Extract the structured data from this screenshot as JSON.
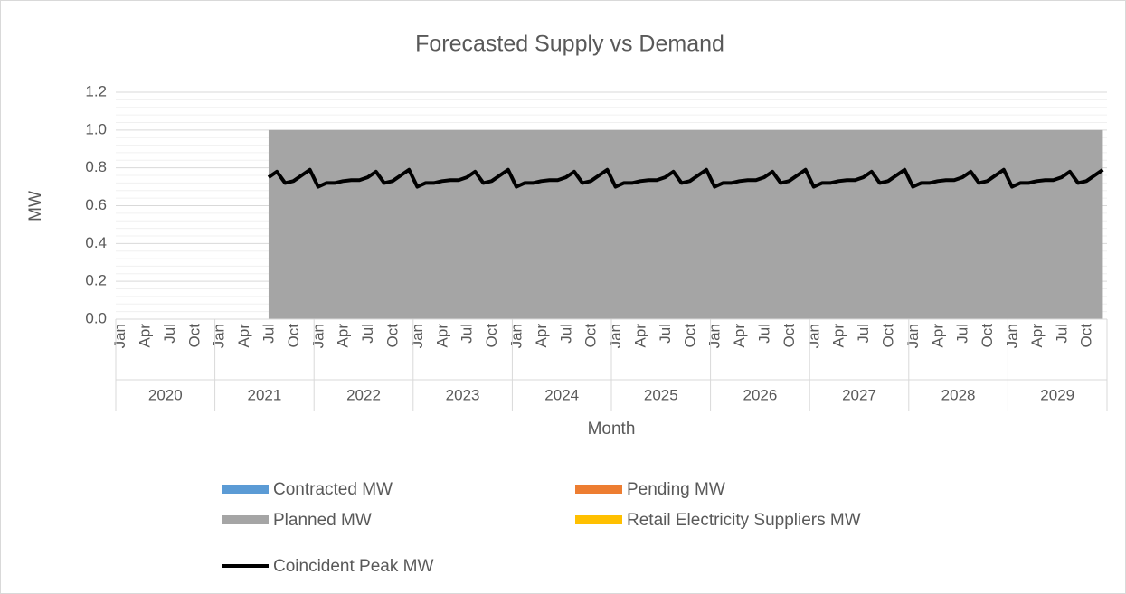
{
  "chart_data": {
    "type": "area",
    "title": "Forecasted Supply vs Demand",
    "x_label": "Month",
    "y_label": "MW",
    "categories": [
      "Jan",
      null,
      null,
      "Apr",
      null,
      null,
      "Jul",
      null,
      null,
      "Oct",
      null,
      null,
      "Jan",
      null,
      null,
      "Apr",
      null,
      null,
      "Jul",
      null,
      null,
      "Oct",
      null,
      null,
      "Jan",
      null,
      null,
      "Apr",
      null,
      null,
      "Jul",
      null,
      null,
      "Oct",
      null,
      null,
      "Jan",
      null,
      null,
      "Apr",
      null,
      null,
      "Jul",
      null,
      null,
      "Oct",
      null,
      null,
      "Jan",
      null,
      null,
      "Apr",
      null,
      null,
      "Jul",
      null,
      null,
      "Oct",
      null,
      null,
      "Jan",
      null,
      null,
      "Apr",
      null,
      null,
      "Jul",
      null,
      null,
      "Oct",
      null,
      null,
      "Jan",
      null,
      null,
      "Apr",
      null,
      null,
      "Jul",
      null,
      null,
      "Oct",
      null,
      null,
      "Jan",
      null,
      null,
      "Apr",
      null,
      null,
      "Jul",
      null,
      null,
      "Oct",
      null,
      null,
      "Jan",
      null,
      null,
      "Apr",
      null,
      null,
      "Jul",
      null,
      null,
      "Oct",
      null,
      null,
      "Jan",
      null,
      null,
      "Apr",
      null,
      null,
      "Jul",
      null,
      null,
      "Oct",
      null,
      null
    ],
    "x_groups": [
      "2020",
      "2021",
      "2022",
      "2023",
      "2024",
      "2025",
      "2026",
      "2027",
      "2028",
      "2029"
    ],
    "ylim": [
      0,
      1.2
    ],
    "yticks": [
      {
        "value": 0,
        "label": "0.0"
      },
      0.2,
      0.4,
      0.6,
      0.8,
      {
        "value": 1,
        "label": "1.0"
      },
      1.2
    ],
    "grid": true,
    "stacked": true,
    "series": [
      {
        "name": "Contracted MW",
        "type": "area",
        "color": "#5b9bd5",
        "values": [
          null,
          null,
          null,
          null,
          null,
          null,
          null,
          null,
          null,
          null,
          null,
          null,
          null,
          null,
          null,
          null,
          null,
          null,
          0,
          0,
          0,
          0,
          0,
          0,
          0,
          0,
          0,
          0,
          0,
          0,
          0,
          0,
          0,
          0,
          0,
          0,
          0,
          0,
          0,
          0,
          0,
          0,
          0,
          0,
          0,
          0,
          0,
          0,
          0,
          0,
          0,
          0,
          0,
          0,
          0,
          0,
          0,
          0,
          0,
          0,
          0,
          0,
          0,
          0,
          0,
          0,
          0,
          0,
          0,
          0,
          0,
          0,
          0,
          0,
          0,
          0,
          0,
          0,
          0,
          0,
          0,
          0,
          0,
          0,
          0,
          0,
          0,
          0,
          0,
          0,
          0,
          0,
          0,
          0,
          0,
          0,
          0,
          0,
          0,
          0,
          0,
          0,
          0,
          0,
          0,
          0,
          0,
          0,
          0,
          0,
          0,
          0,
          0,
          0,
          0,
          0,
          0,
          0,
          0,
          0
        ]
      },
      {
        "name": "Pending MW",
        "type": "area",
        "color": "#ed7d31",
        "values": [
          null,
          null,
          null,
          null,
          null,
          null,
          null,
          null,
          null,
          null,
          null,
          null,
          null,
          null,
          null,
          null,
          null,
          null,
          0,
          0,
          0,
          0,
          0,
          0,
          0,
          0,
          0,
          0,
          0,
          0,
          0,
          0,
          0,
          0,
          0,
          0,
          0,
          0,
          0,
          0,
          0,
          0,
          0,
          0,
          0,
          0,
          0,
          0,
          0,
          0,
          0,
          0,
          0,
          0,
          0,
          0,
          0,
          0,
          0,
          0,
          0,
          0,
          0,
          0,
          0,
          0,
          0,
          0,
          0,
          0,
          0,
          0,
          0,
          0,
          0,
          0,
          0,
          0,
          0,
          0,
          0,
          0,
          0,
          0,
          0,
          0,
          0,
          0,
          0,
          0,
          0,
          0,
          0,
          0,
          0,
          0,
          0,
          0,
          0,
          0,
          0,
          0,
          0,
          0,
          0,
          0,
          0,
          0,
          0,
          0,
          0,
          0,
          0,
          0,
          0,
          0,
          0,
          0,
          0,
          0
        ]
      },
      {
        "name": "Planned MW",
        "type": "area",
        "color": "#a5a5a5",
        "values": [
          null,
          null,
          null,
          null,
          null,
          null,
          null,
          null,
          null,
          null,
          null,
          null,
          null,
          null,
          null,
          null,
          null,
          null,
          1,
          1,
          1,
          1,
          1,
          1,
          1,
          1,
          1,
          1,
          1,
          1,
          1,
          1,
          1,
          1,
          1,
          1,
          1,
          1,
          1,
          1,
          1,
          1,
          1,
          1,
          1,
          1,
          1,
          1,
          1,
          1,
          1,
          1,
          1,
          1,
          1,
          1,
          1,
          1,
          1,
          1,
          1,
          1,
          1,
          1,
          1,
          1,
          1,
          1,
          1,
          1,
          1,
          1,
          1,
          1,
          1,
          1,
          1,
          1,
          1,
          1,
          1,
          1,
          1,
          1,
          1,
          1,
          1,
          1,
          1,
          1,
          1,
          1,
          1,
          1,
          1,
          1,
          1,
          1,
          1,
          1,
          1,
          1,
          1,
          1,
          1,
          1,
          1,
          1,
          1,
          1,
          1,
          1,
          1,
          1,
          1,
          1,
          1,
          1,
          1,
          1
        ]
      },
      {
        "name": "Retail Electricity Suppliers MW",
        "type": "area",
        "color": "#ffc000",
        "values": [
          null,
          null,
          null,
          null,
          null,
          null,
          null,
          null,
          null,
          null,
          null,
          null,
          null,
          null,
          null,
          null,
          null,
          null,
          0,
          0,
          0,
          0,
          0,
          0,
          0,
          0,
          0,
          0,
          0,
          0,
          0,
          0,
          0,
          0,
          0,
          0,
          0,
          0,
          0,
          0,
          0,
          0,
          0,
          0,
          0,
          0,
          0,
          0,
          0,
          0,
          0,
          0,
          0,
          0,
          0,
          0,
          0,
          0,
          0,
          0,
          0,
          0,
          0,
          0,
          0,
          0,
          0,
          0,
          0,
          0,
          0,
          0,
          0,
          0,
          0,
          0,
          0,
          0,
          0,
          0,
          0,
          0,
          0,
          0,
          0,
          0,
          0,
          0,
          0,
          0,
          0,
          0,
          0,
          0,
          0,
          0,
          0,
          0,
          0,
          0,
          0,
          0,
          0,
          0,
          0,
          0,
          0,
          0,
          0,
          0,
          0,
          0,
          0,
          0,
          0,
          0,
          0,
          0,
          0,
          0
        ]
      },
      {
        "name": "Coincident Peak MW",
        "type": "line",
        "color": "#000000",
        "values": [
          null,
          null,
          null,
          null,
          null,
          null,
          null,
          null,
          null,
          null,
          null,
          null,
          null,
          null,
          null,
          null,
          null,
          null,
          0.75,
          0.78,
          0.72,
          0.73,
          0.76,
          0.79,
          0.7,
          0.72,
          0.72,
          0.73,
          0.735,
          0.735,
          0.75,
          0.78,
          0.72,
          0.73,
          0.76,
          0.79,
          0.7,
          0.72,
          0.72,
          0.73,
          0.735,
          0.735,
          0.75,
          0.78,
          0.72,
          0.73,
          0.76,
          0.79,
          0.7,
          0.72,
          0.72,
          0.73,
          0.735,
          0.735,
          0.75,
          0.78,
          0.72,
          0.73,
          0.76,
          0.79,
          0.7,
          0.72,
          0.72,
          0.73,
          0.735,
          0.735,
          0.75,
          0.78,
          0.72,
          0.73,
          0.76,
          0.79,
          0.7,
          0.72,
          0.72,
          0.73,
          0.735,
          0.735,
          0.75,
          0.78,
          0.72,
          0.73,
          0.76,
          0.79,
          0.7,
          0.72,
          0.72,
          0.73,
          0.735,
          0.735,
          0.75,
          0.78,
          0.72,
          0.73,
          0.76,
          0.79,
          0.7,
          0.72,
          0.72,
          0.73,
          0.735,
          0.735,
          0.75,
          0.78,
          0.72,
          0.73,
          0.76,
          0.79,
          0.7,
          0.72,
          0.72,
          0.73,
          0.735,
          0.735,
          0.75,
          0.78,
          0.72,
          0.73,
          0.76,
          0.79
        ]
      }
    ]
  }
}
